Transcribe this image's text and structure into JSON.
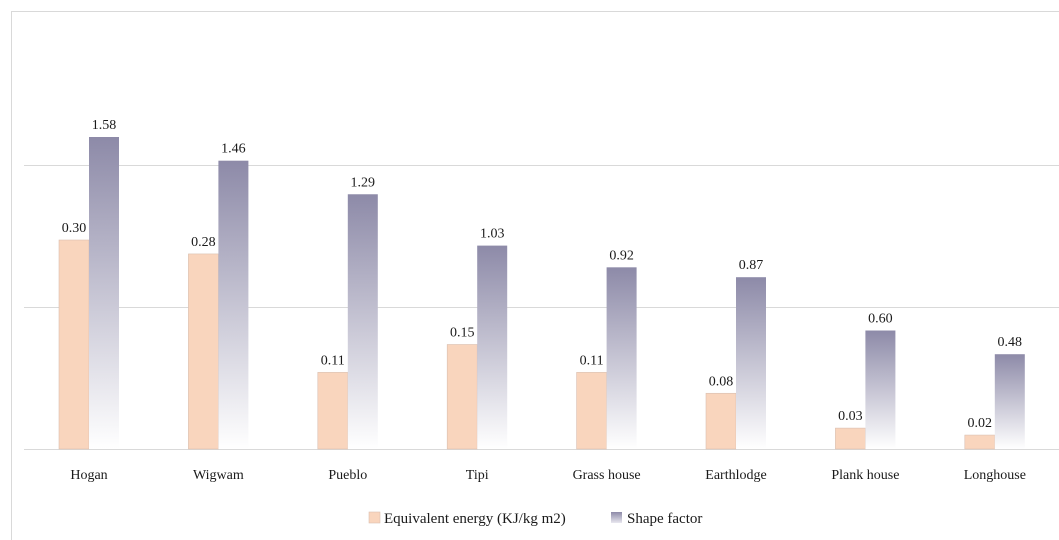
{
  "chart_data": {
    "type": "bar",
    "categories": [
      "Hogan",
      "Wigwam",
      "Pueblo",
      "Tipi",
      "Grass house",
      "Earthlodge",
      "Plank house",
      "Longhouse"
    ],
    "series": [
      {
        "name": "Equivalent energy (KJ/kg m2)",
        "values": [
          0.3,
          0.28,
          0.11,
          0.15,
          0.11,
          0.08,
          0.03,
          0.02
        ],
        "labels": [
          "0.30",
          "0.28",
          "0.11",
          "0.15",
          "0.11",
          "0.08",
          "0.03",
          "0.02"
        ],
        "color": "#f9d5bd"
      },
      {
        "name": "Shape factor",
        "values": [
          1.58,
          1.46,
          1.29,
          1.03,
          0.92,
          0.87,
          0.6,
          0.48
        ],
        "labels": [
          "1.58",
          "1.46",
          "1.29",
          "1.03",
          "0.92",
          "0.87",
          "0.60",
          "0.48"
        ],
        "color_top": "#8d8aa8",
        "color_bottom": "#ffffff"
      }
    ],
    "grid": true,
    "legend_position": "bottom-center"
  }
}
